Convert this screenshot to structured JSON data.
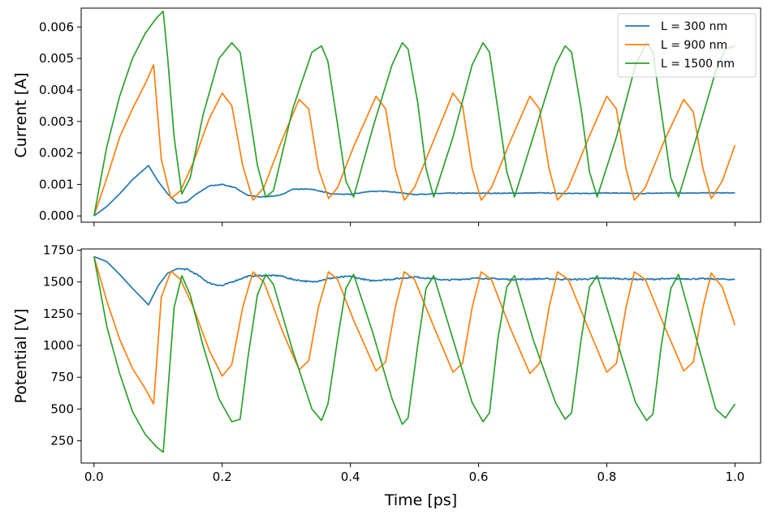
{
  "chart_data": [
    {
      "type": "line",
      "panel": "top",
      "xlabel": "",
      "ylabel": "Current [A]",
      "xlim": [
        -0.02,
        1.04
      ],
      "ylim": [
        -0.0002,
        0.0066
      ],
      "xticks": [
        0.0,
        0.2,
        0.4,
        0.6,
        0.8,
        1.0
      ],
      "xtick_labels": [],
      "yticks": [
        0.0,
        0.001,
        0.002,
        0.003,
        0.004,
        0.005,
        0.006
      ],
      "ytick_labels": [
        "0.000",
        "0.001",
        "0.002",
        "0.003",
        "0.004",
        "0.005",
        "0.006"
      ],
      "legend": {
        "placement": "top-right",
        "entries": [
          "L = 300 nm",
          "L = 900 nm",
          "L = 1500 nm"
        ]
      },
      "series": [
        {
          "name": "L = 300 nm",
          "color": "#1f77b4",
          "noise": 1.2e-05,
          "x": [
            0,
            0.02,
            0.04,
            0.06,
            0.085,
            0.1,
            0.115,
            0.13,
            0.145,
            0.16,
            0.18,
            0.2,
            0.22,
            0.24,
            0.26,
            0.29,
            0.31,
            0.34,
            0.37,
            0.4,
            0.43,
            0.46,
            0.5,
            0.55,
            0.6,
            0.65,
            0.7,
            0.75,
            0.8,
            0.85,
            0.9,
            0.95,
            1.0
          ],
          "values": [
            0,
            0.0003,
            0.0007,
            0.00115,
            0.0016,
            0.0011,
            0.0007,
            0.0004,
            0.00045,
            0.0007,
            0.00095,
            0.001,
            0.0009,
            0.00065,
            0.0006,
            0.00065,
            0.00085,
            0.00085,
            0.0007,
            0.00068,
            0.00078,
            0.00078,
            0.00068,
            0.00072,
            0.00072,
            0.00072,
            0.00073,
            0.00071,
            0.00073,
            0.00071,
            0.00073,
            0.00073,
            0.00073
          ]
        },
        {
          "name": "L = 900 nm",
          "color": "#ff7f0e",
          "noise": 0,
          "x": [
            0,
            0.02,
            0.04,
            0.06,
            0.08,
            0.093,
            0.105,
            0.12,
            0.135,
            0.155,
            0.18,
            0.2,
            0.215,
            0.232,
            0.248,
            0.265,
            0.295,
            0.32,
            0.335,
            0.35,
            0.366,
            0.38,
            0.405,
            0.44,
            0.455,
            0.47,
            0.484,
            0.5,
            0.53,
            0.56,
            0.575,
            0.59,
            0.604,
            0.62,
            0.65,
            0.68,
            0.695,
            0.71,
            0.723,
            0.74,
            0.77,
            0.8,
            0.815,
            0.83,
            0.843,
            0.86,
            0.89,
            0.92,
            0.935,
            0.95,
            0.963,
            0.98,
            1.0
          ],
          "values": [
            0,
            0.0012,
            0.0025,
            0.0034,
            0.0042,
            0.0048,
            0.0018,
            0.00055,
            0.0008,
            0.0017,
            0.0031,
            0.0039,
            0.0035,
            0.0016,
            0.0005,
            0.0009,
            0.0025,
            0.0037,
            0.0034,
            0.0015,
            0.00055,
            0.0009,
            0.0022,
            0.0038,
            0.0034,
            0.0015,
            0.0005,
            0.0009,
            0.0024,
            0.0039,
            0.0035,
            0.0015,
            0.0005,
            0.0009,
            0.0024,
            0.0038,
            0.0034,
            0.0015,
            0.0005,
            0.0009,
            0.0024,
            0.0038,
            0.0034,
            0.0015,
            0.0005,
            0.0009,
            0.0024,
            0.0037,
            0.0033,
            0.0015,
            0.00055,
            0.0011,
            0.00225
          ]
        },
        {
          "name": "L = 1500 nm",
          "color": "#2ca02c",
          "noise": 0,
          "x": [
            0,
            0.02,
            0.04,
            0.06,
            0.08,
            0.098,
            0.108,
            0.115,
            0.125,
            0.137,
            0.15,
            0.17,
            0.195,
            0.215,
            0.228,
            0.24,
            0.255,
            0.268,
            0.28,
            0.31,
            0.34,
            0.355,
            0.365,
            0.38,
            0.393,
            0.405,
            0.435,
            0.465,
            0.481,
            0.49,
            0.505,
            0.518,
            0.53,
            0.56,
            0.59,
            0.607,
            0.617,
            0.63,
            0.644,
            0.656,
            0.685,
            0.72,
            0.735,
            0.745,
            0.76,
            0.773,
            0.785,
            0.815,
            0.845,
            0.862,
            0.872,
            0.885,
            0.9,
            0.912,
            0.94,
            0.97,
            0.985,
            1.0
          ],
          "values": [
            0,
            0.0022,
            0.0038,
            0.005,
            0.0058,
            0.0063,
            0.0065,
            0.005,
            0.0025,
            0.0007,
            0.0012,
            0.0032,
            0.005,
            0.0055,
            0.0052,
            0.0036,
            0.0016,
            0.0006,
            0.0008,
            0.0034,
            0.0052,
            0.0054,
            0.0049,
            0.0029,
            0.0011,
            0.0006,
            0.0028,
            0.0048,
            0.0055,
            0.0053,
            0.0036,
            0.0015,
            0.0006,
            0.0025,
            0.0048,
            0.0055,
            0.0052,
            0.0034,
            0.0014,
            0.0006,
            0.0025,
            0.0048,
            0.0054,
            0.0052,
            0.0034,
            0.0014,
            0.0006,
            0.0025,
            0.0048,
            0.0055,
            0.0052,
            0.0033,
            0.0012,
            0.0006,
            0.0025,
            0.0046,
            0.0053,
            0.0054
          ]
        }
      ]
    },
    {
      "type": "line",
      "panel": "bottom",
      "xlabel": "Time [ps]",
      "ylabel": "Potential [V]",
      "xlim": [
        -0.02,
        1.04
      ],
      "ylim": [
        75,
        1760
      ],
      "xticks": [
        0.0,
        0.2,
        0.4,
        0.6,
        0.8,
        1.0
      ],
      "xtick_labels": [
        "0.0",
        "0.2",
        "0.4",
        "0.6",
        "0.8",
        "1.0"
      ],
      "yticks": [
        250,
        500,
        750,
        1000,
        1250,
        1500,
        1750
      ],
      "ytick_labels": [
        "250",
        "500",
        "750",
        "1000",
        "1250",
        "1500",
        "1750"
      ],
      "series": [
        {
          "name": "L = 300 nm",
          "color": "#1f77b4",
          "noise": 6,
          "x": [
            0,
            0.02,
            0.04,
            0.06,
            0.085,
            0.1,
            0.115,
            0.13,
            0.145,
            0.16,
            0.18,
            0.2,
            0.22,
            0.24,
            0.26,
            0.29,
            0.31,
            0.34,
            0.37,
            0.4,
            0.43,
            0.46,
            0.5,
            0.55,
            0.6,
            0.65,
            0.7,
            0.75,
            0.8,
            0.85,
            0.9,
            0.95,
            1.0
          ],
          "values": [
            1700,
            1660,
            1560,
            1450,
            1320,
            1470,
            1570,
            1605,
            1600,
            1560,
            1490,
            1470,
            1510,
            1545,
            1550,
            1550,
            1520,
            1500,
            1530,
            1545,
            1510,
            1520,
            1540,
            1515,
            1530,
            1520,
            1525,
            1520,
            1530,
            1520,
            1525,
            1525,
            1520
          ]
        },
        {
          "name": "L = 900 nm",
          "color": "#ff7f0e",
          "noise": 0,
          "x": [
            0,
            0.02,
            0.04,
            0.06,
            0.08,
            0.093,
            0.105,
            0.12,
            0.135,
            0.155,
            0.18,
            0.2,
            0.215,
            0.232,
            0.248,
            0.265,
            0.295,
            0.32,
            0.335,
            0.35,
            0.366,
            0.38,
            0.405,
            0.44,
            0.455,
            0.47,
            0.484,
            0.5,
            0.53,
            0.56,
            0.575,
            0.59,
            0.604,
            0.62,
            0.65,
            0.68,
            0.695,
            0.71,
            0.723,
            0.74,
            0.77,
            0.8,
            0.815,
            0.83,
            0.843,
            0.86,
            0.89,
            0.92,
            0.935,
            0.95,
            0.963,
            0.98,
            1.0
          ],
          "values": [
            1700,
            1350,
            1050,
            820,
            660,
            540,
            1380,
            1585,
            1520,
            1300,
            960,
            760,
            850,
            1300,
            1580,
            1500,
            1100,
            810,
            880,
            1300,
            1580,
            1520,
            1200,
            800,
            870,
            1300,
            1580,
            1520,
            1150,
            790,
            860,
            1300,
            1580,
            1520,
            1130,
            780,
            860,
            1300,
            1580,
            1520,
            1150,
            790,
            860,
            1300,
            1580,
            1520,
            1150,
            800,
            870,
            1300,
            1570,
            1460,
            1160
          ]
        },
        {
          "name": "L = 1500 nm",
          "color": "#2ca02c",
          "noise": 0,
          "x": [
            0,
            0.02,
            0.04,
            0.06,
            0.08,
            0.098,
            0.108,
            0.115,
            0.125,
            0.137,
            0.15,
            0.17,
            0.195,
            0.215,
            0.228,
            0.24,
            0.255,
            0.268,
            0.28,
            0.31,
            0.34,
            0.355,
            0.365,
            0.38,
            0.393,
            0.405,
            0.435,
            0.465,
            0.481,
            0.49,
            0.505,
            0.518,
            0.53,
            0.56,
            0.59,
            0.607,
            0.617,
            0.63,
            0.644,
            0.656,
            0.685,
            0.72,
            0.735,
            0.745,
            0.76,
            0.773,
            0.785,
            0.815,
            0.845,
            0.862,
            0.872,
            0.885,
            0.9,
            0.912,
            0.94,
            0.97,
            0.985,
            1.0
          ],
          "values": [
            1700,
            1150,
            780,
            480,
            300,
            200,
            160,
            620,
            1300,
            1550,
            1400,
            1000,
            580,
            400,
            420,
            900,
            1400,
            1560,
            1480,
            960,
            500,
            410,
            540,
            1050,
            1450,
            1560,
            1100,
            580,
            380,
            430,
            1000,
            1450,
            1550,
            1050,
            550,
            400,
            470,
            1050,
            1460,
            1550,
            1050,
            550,
            420,
            470,
            1050,
            1460,
            1550,
            1050,
            550,
            410,
            460,
            1000,
            1450,
            1560,
            1050,
            500,
            430,
            540
          ]
        }
      ]
    }
  ]
}
